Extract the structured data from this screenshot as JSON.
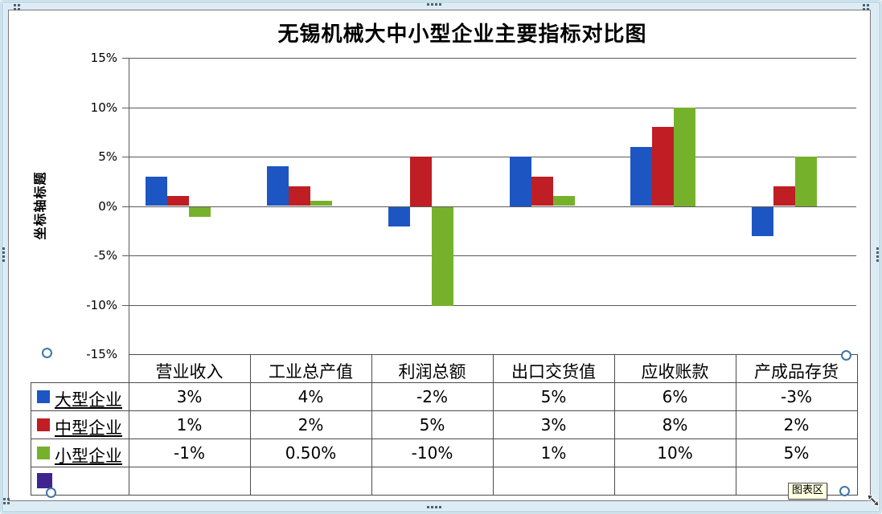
{
  "tooltip_label": "图表区",
  "chart_data": {
    "type": "bar",
    "title": "无锡机械大中小型企业主要指标对比图",
    "y_axis_title": "坐标轴标题",
    "categories": [
      "营业收入",
      "工业总产值",
      "利润总额",
      "出口交货值",
      "应收账款",
      "产成品存货"
    ],
    "series": [
      {
        "name": "大型企业",
        "color": "#1D56C2",
        "values": [
          3,
          4,
          -2,
          5,
          6,
          -3
        ],
        "labels": [
          "3%",
          "4%",
          "-2%",
          "5%",
          "6%",
          "-3%"
        ]
      },
      {
        "name": "中型企业",
        "color": "#BF1E24",
        "values": [
          1,
          2,
          5,
          3,
          8,
          2
        ],
        "labels": [
          "1%",
          "2%",
          "5%",
          "3%",
          "8%",
          "2%"
        ]
      },
      {
        "name": "小型企业",
        "color": "#76B12C",
        "values": [
          -1,
          0.5,
          -10,
          1,
          10,
          5
        ],
        "labels": [
          "-1%",
          "0.50%",
          "-10%",
          "1%",
          "10%",
          "5%"
        ]
      },
      {
        "name": "",
        "color": "#3F2490",
        "values": [],
        "labels": [
          "",
          "",
          "",
          "",
          "",
          ""
        ]
      }
    ],
    "y_ticks": [
      {
        "label": "15%",
        "value": 15
      },
      {
        "label": "10%",
        "value": 10
      },
      {
        "label": "5%",
        "value": 5
      },
      {
        "label": "0%",
        "value": 0
      },
      {
        "label": "-5%",
        "value": -5
      },
      {
        "label": "-10%",
        "value": -10
      },
      {
        "label": "-15%",
        "value": -15
      }
    ],
    "ylim": [
      -15,
      15
    ],
    "grid": true,
    "legend_position": "data-table-left",
    "data_table": true
  }
}
